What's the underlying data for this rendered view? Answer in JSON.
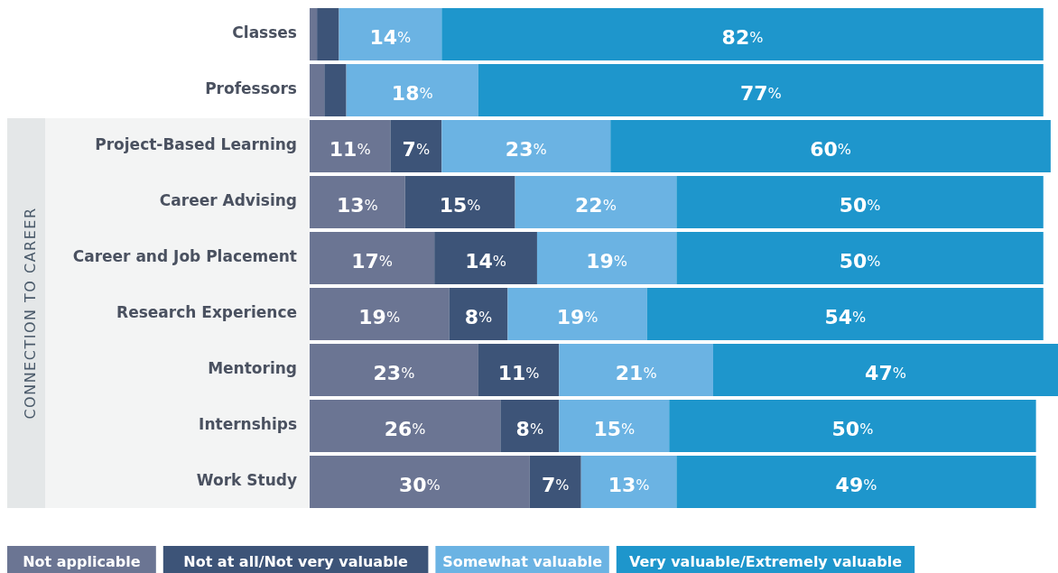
{
  "chart_data": {
    "type": "bar",
    "orientation": "horizontal",
    "stacked": true,
    "categories": [
      "Classes",
      "Professors",
      "Project-Based Learning",
      "Career Advising",
      "Career and Job Placement",
      "Research Experience",
      "Mentoring",
      "Internships",
      "Work Study"
    ],
    "xlim": [
      0,
      102
    ],
    "legend": "bottom",
    "series": [
      {
        "name": "Not applicable",
        "color": "#6b7593",
        "values": [
          1,
          2,
          11,
          13,
          17,
          19,
          23,
          26,
          30
        ],
        "value_labels": [
          null,
          null,
          "11%",
          "13%",
          "17%",
          "19%",
          "23%",
          "26%",
          "30%"
        ]
      },
      {
        "name": "Not at all/Not very valuable",
        "color": "#3d5478",
        "values": [
          3,
          3,
          7,
          15,
          14,
          8,
          11,
          8,
          7
        ],
        "value_labels": [
          null,
          null,
          "7%",
          "15%",
          "14%",
          "8%",
          "11%",
          "8%",
          "7%"
        ]
      },
      {
        "name": "Somewhat valuable",
        "color": "#6bb3e3",
        "values": [
          14,
          18,
          23,
          22,
          19,
          19,
          21,
          15,
          13
        ],
        "value_labels": [
          "14%",
          "18%",
          "23%",
          "22%",
          "19%",
          "19%",
          "21%",
          "15%",
          "13%"
        ]
      },
      {
        "name": "Very valuable/Extremely valuable",
        "color": "#1e96cc",
        "values": [
          82,
          77,
          60,
          50,
          50,
          54,
          47,
          50,
          49
        ],
        "value_labels": [
          "82%",
          "77%",
          "60%",
          "50%",
          "50%",
          "54%",
          "47%",
          "50%",
          "49%"
        ]
      }
    ],
    "annotations": [
      "CONNECTION TO CAREER"
    ]
  }
}
